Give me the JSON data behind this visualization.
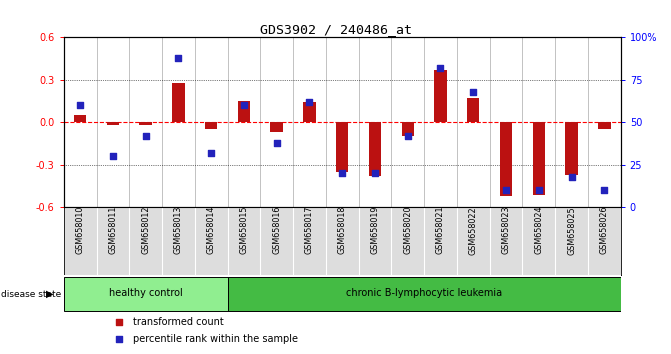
{
  "title": "GDS3902 / 240486_at",
  "samples": [
    "GSM658010",
    "GSM658011",
    "GSM658012",
    "GSM658013",
    "GSM658014",
    "GSM658015",
    "GSM658016",
    "GSM658017",
    "GSM658018",
    "GSM658019",
    "GSM658020",
    "GSM658021",
    "GSM658022",
    "GSM658023",
    "GSM658024",
    "GSM658025",
    "GSM658026"
  ],
  "transformed_count": [
    0.05,
    -0.02,
    -0.02,
    0.28,
    -0.05,
    0.15,
    -0.07,
    0.14,
    -0.35,
    -0.38,
    -0.1,
    0.37,
    0.17,
    -0.52,
    -0.51,
    -0.37,
    -0.05
  ],
  "percentile_rank": [
    60,
    30,
    42,
    88,
    32,
    60,
    38,
    62,
    20,
    20,
    42,
    82,
    68,
    10,
    10,
    18,
    10
  ],
  "groups": [
    {
      "label": "healthy control",
      "start": 0,
      "end": 4,
      "color": "#90EE90"
    },
    {
      "label": "chronic B-lymphocytic leukemia",
      "start": 5,
      "end": 16,
      "color": "#44BB44"
    }
  ],
  "bar_color": "#BB1111",
  "dot_color": "#2222BB",
  "ylim_left": [
    -0.6,
    0.6
  ],
  "ylim_right": [
    0,
    100
  ],
  "yticks_left": [
    -0.6,
    -0.3,
    0.0,
    0.3,
    0.6
  ],
  "yticks_right": [
    0,
    25,
    50,
    75,
    100
  ],
  "ytick_labels_right": [
    "0",
    "25",
    "50",
    "75",
    "100%"
  ],
  "legend_items": [
    {
      "label": "transformed count",
      "color": "#BB1111"
    },
    {
      "label": "percentile rank within the sample",
      "color": "#2222BB"
    }
  ],
  "bg_color": "#FFFFFF",
  "plot_bg_color": "#FFFFFF",
  "sample_bg_color": "#DDDDDD",
  "healthy_color": "#90EE90",
  "leukemia_color": "#44BB44"
}
